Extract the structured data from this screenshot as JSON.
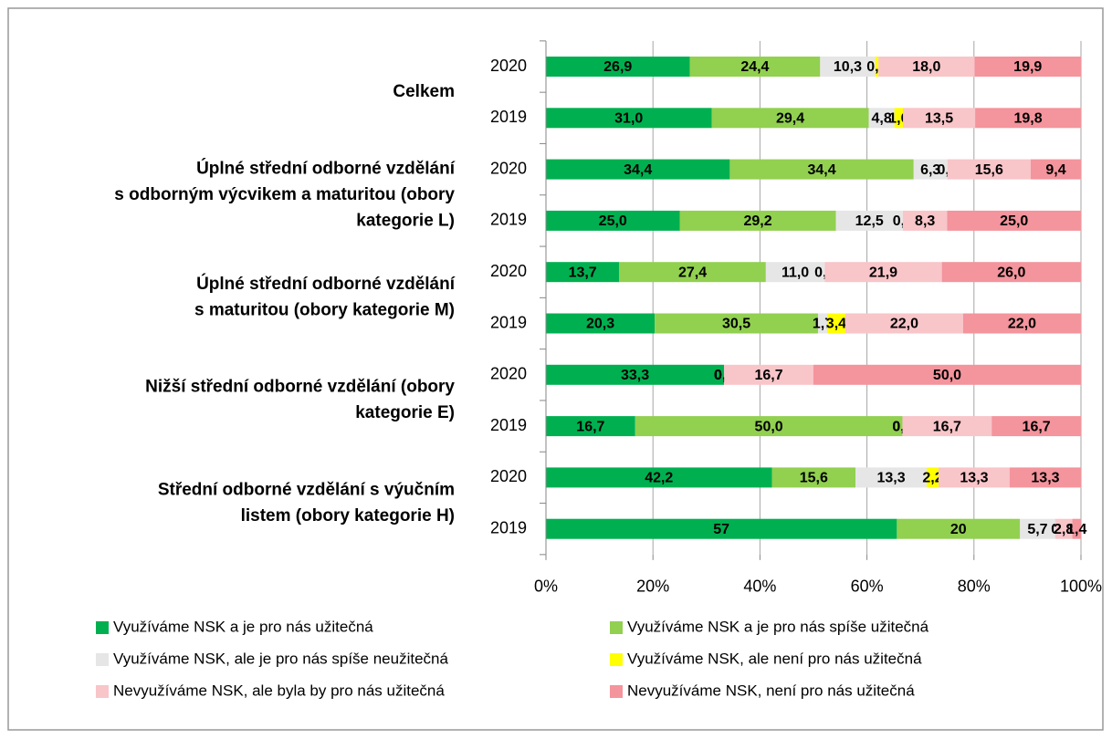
{
  "chart_data": {
    "type": "bar",
    "orientation": "horizontal",
    "stacked": "percent",
    "categories": [
      "2020",
      "2019",
      "2020",
      "2019",
      "2020",
      "2019",
      "2020",
      "2019",
      "2020",
      "2019"
    ],
    "groups": [
      {
        "lines": [
          "Celkem"
        ]
      },
      {
        "lines": [
          "Úplné střední odborné vzdělání",
          "s odborným výcvikem a maturitou (obory",
          "kategorie L)"
        ]
      },
      {
        "lines": [
          "Úplné střední odborné vzdělání",
          "s maturitou (obory kategorie M)"
        ]
      },
      {
        "lines": [
          "Nižší střední odborné vzdělání (obory",
          "kategorie E)"
        ]
      },
      {
        "lines": [
          "Střední odborné vzdělání s výučním",
          "listem (obory kategorie H)"
        ]
      }
    ],
    "series": [
      {
        "name": "Využíváme NSK a je pro nás užitečná",
        "color": "#00b050",
        "values": [
          26.9,
          31.0,
          34.4,
          25.0,
          13.7,
          20.3,
          33.3,
          16.7,
          42.2,
          57
        ],
        "value_labels": [
          "26,9",
          "31,0",
          "34,4",
          "25,0",
          "13,7",
          "20,3",
          "33,3",
          "16,7",
          "42,2",
          "57"
        ]
      },
      {
        "name": "Využíváme NSK a je pro nás spíše užitečná",
        "color": "#92d050",
        "values": [
          24.4,
          29.4,
          34.4,
          29.2,
          27.4,
          30.5,
          0.0,
          50.0,
          15.6,
          20
        ],
        "value_labels": [
          "24,4",
          "29,4",
          "34,4",
          "29,2",
          "27,4",
          "30,5",
          "0,0",
          "50,0",
          "15,6",
          "20"
        ]
      },
      {
        "name": "Využíváme NSK, ale je pro nás spíše neužitečná",
        "color": "#e7e6e6",
        "values": [
          10.3,
          4.8,
          6.3,
          12.5,
          11.0,
          1.7,
          0.0,
          0.0,
          13.3,
          5.7
        ],
        "value_labels": [
          "10,3",
          "4,8",
          "6,3",
          "12,5",
          "11,0",
          "1,7",
          "0,0",
          "0,0",
          "13,3",
          "5,7"
        ]
      },
      {
        "name": "Využíváme NSK, ale není pro nás užitečná",
        "color": "#ffff00",
        "values": [
          0.6,
          1.6,
          0.0,
          0.0,
          0.0,
          3.4,
          0.0,
          0.0,
          2.2,
          0
        ],
        "value_labels": [
          "0,6",
          "1,6",
          "0,0",
          "0,0",
          "0,0",
          "3,4",
          "0,0",
          "0,0",
          "2,2",
          "0"
        ]
      },
      {
        "name": "Nevyužíváme NSK, ale byla by pro nás užitečná",
        "color": "#f8c5c9",
        "values": [
          18.0,
          13.5,
          15.6,
          8.3,
          21.9,
          22.0,
          16.7,
          16.7,
          13.3,
          2.8
        ],
        "value_labels": [
          "18,0",
          "13,5",
          "15,6",
          "8,3",
          "21,9",
          "22,0",
          "16,7",
          "16,7",
          "13,3",
          "2,8"
        ]
      },
      {
        "name": "Nevyužíváme NSK, není pro nás užitečná",
        "color": "#f4949c",
        "values": [
          19.9,
          19.8,
          9.4,
          25.0,
          26.0,
          22.0,
          50.0,
          16.7,
          13.3,
          1.4
        ],
        "value_labels": [
          "19,9",
          "19,8",
          "9,4",
          "25,0",
          "26,0",
          "22,0",
          "50,0",
          "16,7",
          "13,3",
          "1,4"
        ]
      }
    ],
    "xlim": [
      0,
      100
    ],
    "xticks": [
      {
        "value": 0,
        "label": "0%"
      },
      {
        "value": 20,
        "label": "20%"
      },
      {
        "value": 40,
        "label": "40%"
      },
      {
        "value": 60,
        "label": "60%"
      },
      {
        "value": 80,
        "label": "80%"
      },
      {
        "value": 100,
        "label": "100%"
      }
    ],
    "grid": true,
    "legend": "bottom"
  }
}
